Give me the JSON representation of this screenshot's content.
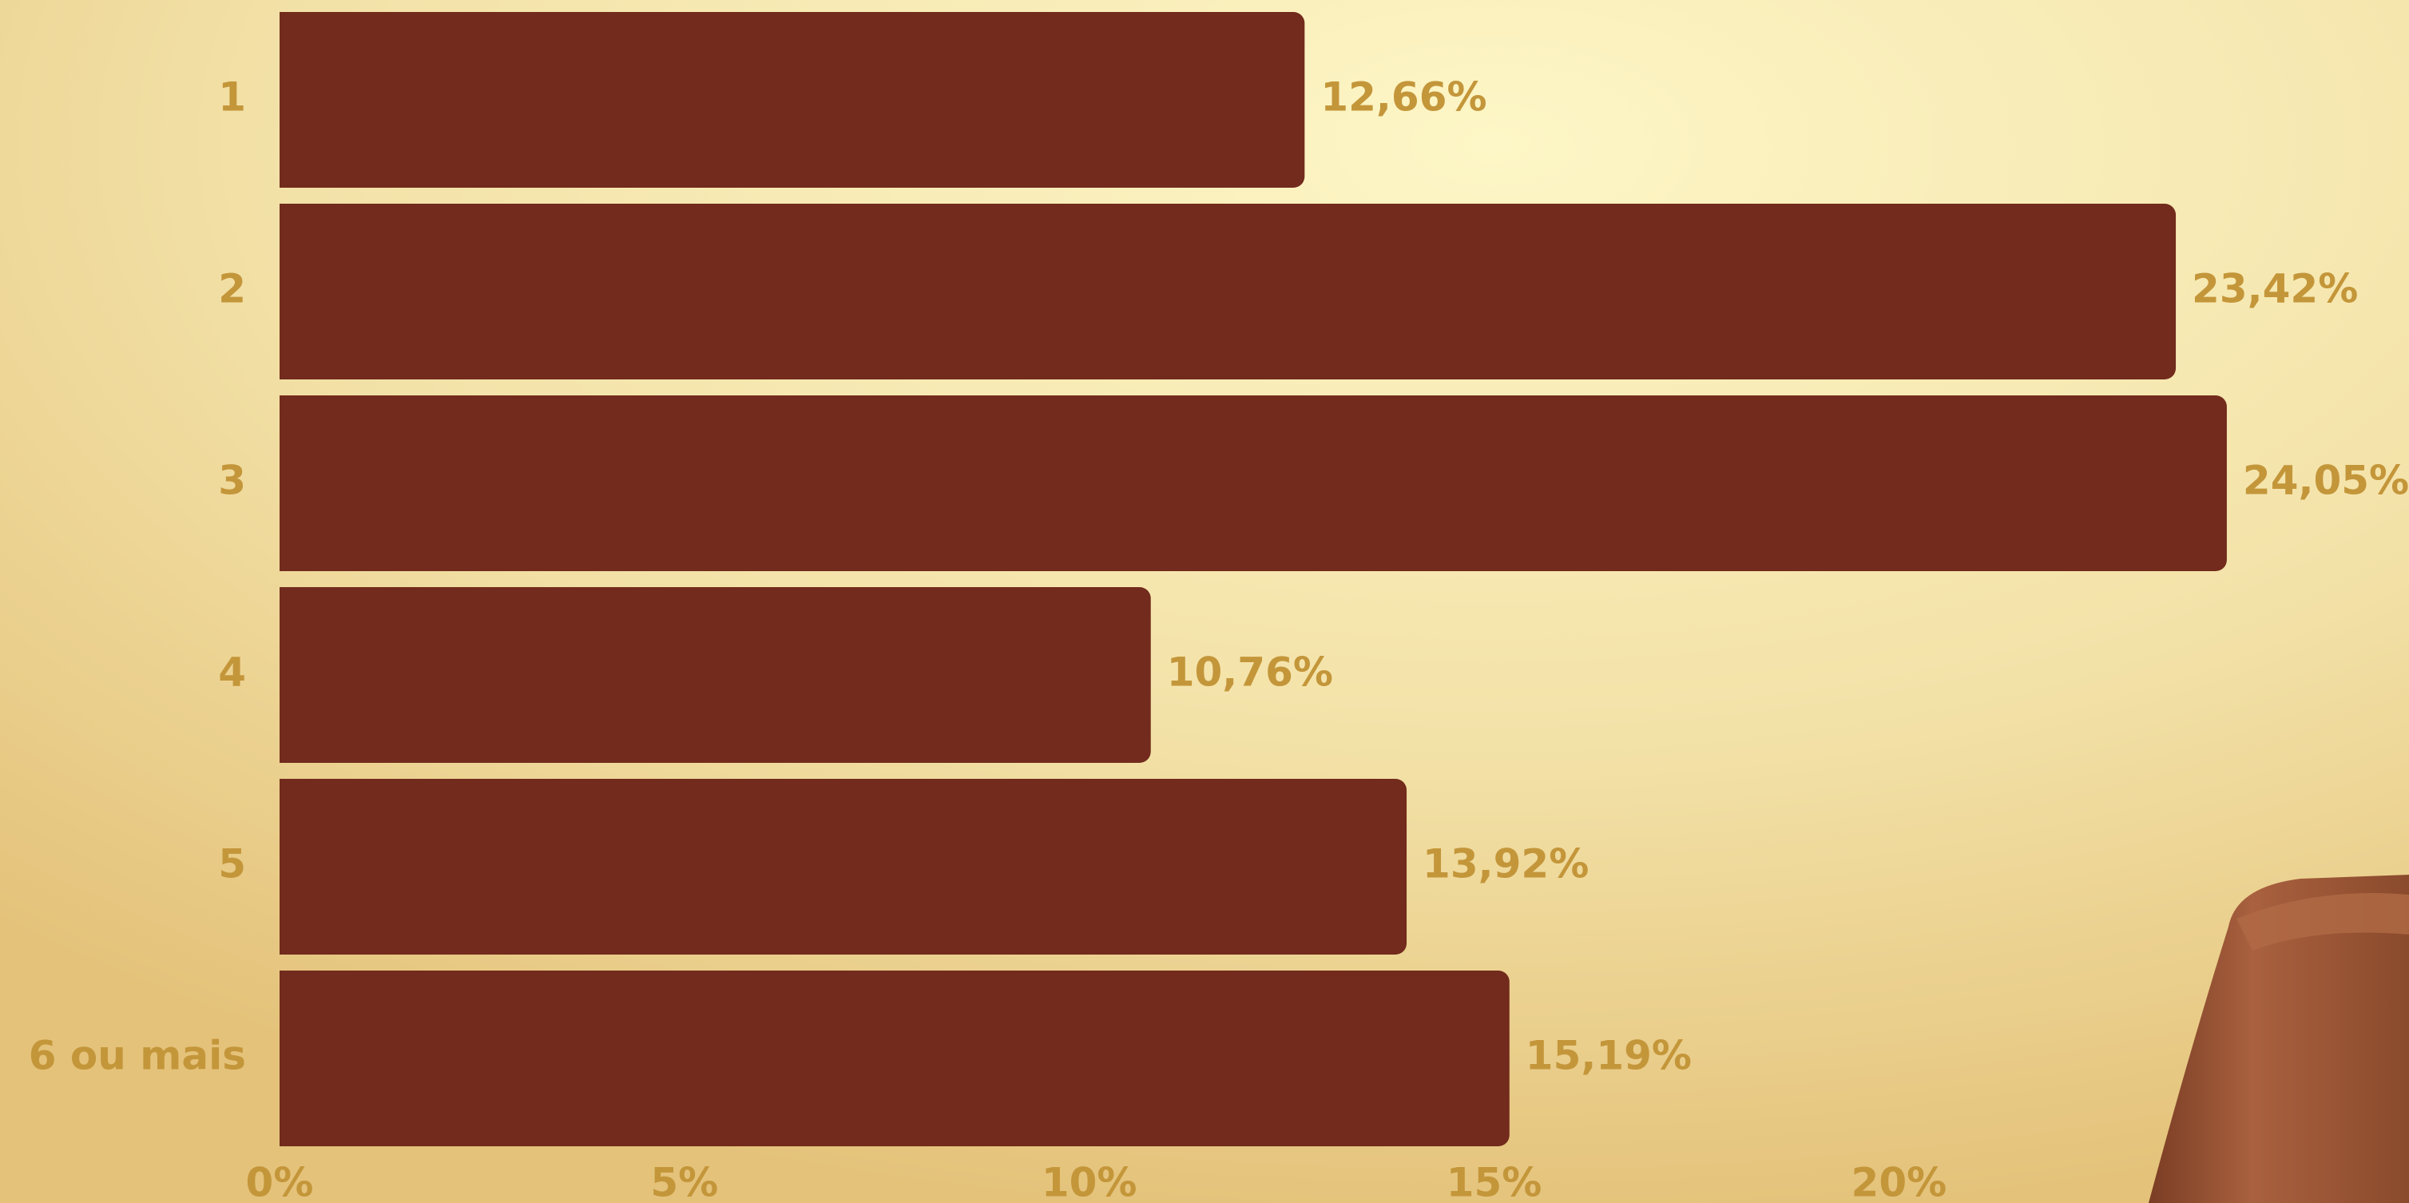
{
  "chart_data": {
    "type": "bar",
    "orientation": "horizontal",
    "categories": [
      "1",
      "2",
      "3",
      "4",
      "5",
      "6 ou mais"
    ],
    "values": [
      12.66,
      23.42,
      24.05,
      10.76,
      13.92,
      15.19
    ],
    "value_labels": [
      "12,66%",
      "23,42%",
      "24,05%",
      "10,76%",
      "13,92%",
      "15,19%"
    ],
    "color": "#722b1c",
    "xlim": [
      0,
      26.3
    ],
    "xticks": [
      {
        "value": 0,
        "label": "0%"
      },
      {
        "value": 5,
        "label": "5%"
      },
      {
        "value": 10,
        "label": "10%"
      },
      {
        "value": 15,
        "label": "15%"
      },
      {
        "value": 20,
        "label": "20%"
      }
    ],
    "grid": false
  }
}
